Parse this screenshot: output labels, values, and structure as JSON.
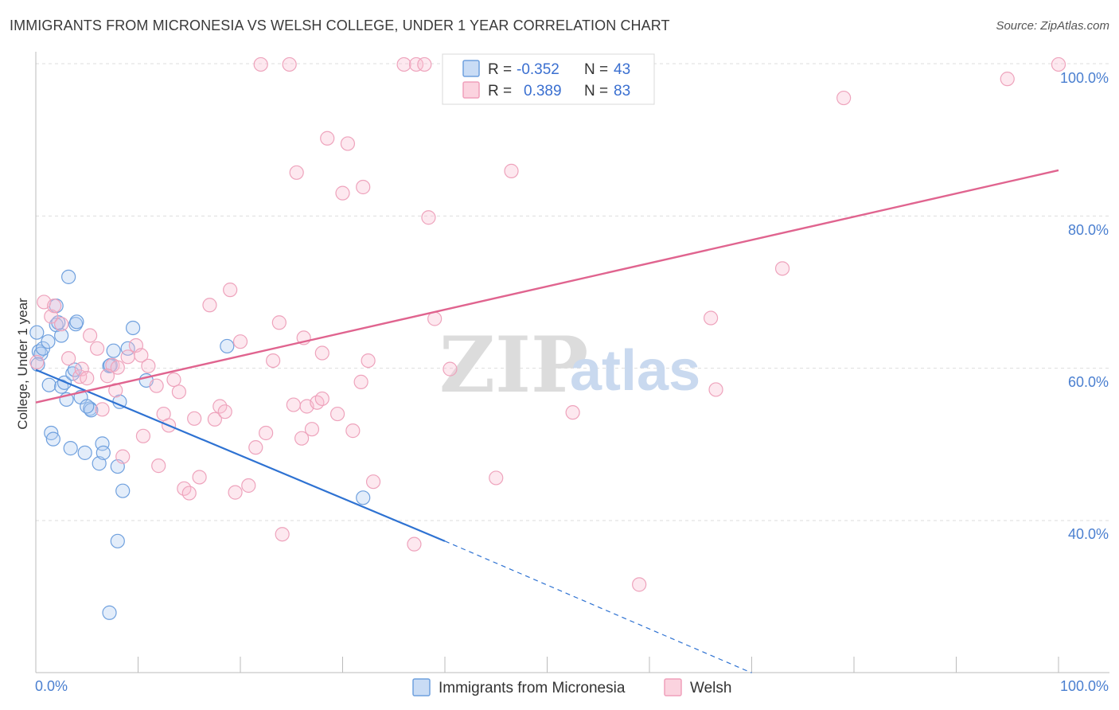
{
  "title": "IMMIGRANTS FROM MICRONESIA VS WELSH COLLEGE, UNDER 1 YEAR CORRELATION CHART",
  "source": "Source: ZipAtlas.com",
  "watermark": {
    "zip": "ZIP",
    "atlas": "atlas"
  },
  "colors": {
    "blue": "#6fa0de",
    "blue_line": "#2e72d2",
    "pink": "#f0a0bb",
    "pink_line": "#e0648f",
    "grid": "#dddddd"
  },
  "legend": {
    "r_label": "R =",
    "n_label": "N =",
    "rows": [
      {
        "r": "-0.352",
        "n": "43",
        "color": "#6fa0de"
      },
      {
        "r": "0.389",
        "n": "83",
        "color": "#f0a0bb"
      }
    ]
  },
  "chart_data": {
    "type": "scatter",
    "title": "IMMIGRANTS FROM MICRONESIA VS WELSH COLLEGE, UNDER 1 YEAR CORRELATION CHART",
    "xlabel": "",
    "ylabel": "College, Under 1 year",
    "xlim": [
      0,
      100
    ],
    "ylim": [
      20,
      102
    ],
    "x_tick_labels": [
      "0.0%",
      "100.0%"
    ],
    "y_ticks": [
      40,
      60,
      80,
      100
    ],
    "y_tick_labels": [
      "40.0%",
      "60.0%",
      "80.0%",
      "100.0%"
    ],
    "grid": true,
    "legend_position": "bottom",
    "series": [
      {
        "name": "Immigrants from Micronesia",
        "color": "#6fa0de",
        "points": [
          [
            0.1,
            64.7
          ],
          [
            0.3,
            62.2
          ],
          [
            0.5,
            61.9
          ],
          [
            0.7,
            62.6
          ],
          [
            1.2,
            63.5
          ],
          [
            1.3,
            57.8
          ],
          [
            1.5,
            51.5
          ],
          [
            1.7,
            50.7
          ],
          [
            2.0,
            68.2
          ],
          [
            2.0,
            65.7
          ],
          [
            2.2,
            66.0
          ],
          [
            2.5,
            64.3
          ],
          [
            2.5,
            57.6
          ],
          [
            2.8,
            58.1
          ],
          [
            3.0,
            55.9
          ],
          [
            3.2,
            72.0
          ],
          [
            3.4,
            49.5
          ],
          [
            3.6,
            59.3
          ],
          [
            3.8,
            59.8
          ],
          [
            3.9,
            65.8
          ],
          [
            4.0,
            66.1
          ],
          [
            4.4,
            56.2
          ],
          [
            4.8,
            48.9
          ],
          [
            5.3,
            54.7
          ],
          [
            5.4,
            54.5
          ],
          [
            6.2,
            47.5
          ],
          [
            6.5,
            50.1
          ],
          [
            6.6,
            48.9
          ],
          [
            7.2,
            60.3
          ],
          [
            7.2,
            27.9
          ],
          [
            7.3,
            60.4
          ],
          [
            7.6,
            62.3
          ],
          [
            8.0,
            47.1
          ],
          [
            8.2,
            55.6
          ],
          [
            8.5,
            43.9
          ],
          [
            8.0,
            37.3
          ],
          [
            9.0,
            62.6
          ],
          [
            9.5,
            65.3
          ],
          [
            10.8,
            58.4
          ],
          [
            18.7,
            62.9
          ],
          [
            32.0,
            43.0
          ],
          [
            0.2,
            60.5
          ],
          [
            5.0,
            55.0
          ]
        ]
      },
      {
        "name": "Welsh",
        "color": "#f0a0bb",
        "points": [
          [
            0.1,
            60.8
          ],
          [
            0.8,
            68.7
          ],
          [
            1.5,
            66.8
          ],
          [
            1.8,
            68.2
          ],
          [
            2.5,
            65.8
          ],
          [
            3.2,
            61.3
          ],
          [
            4.3,
            58.9
          ],
          [
            4.5,
            59.9
          ],
          [
            5.0,
            58.7
          ],
          [
            5.3,
            64.3
          ],
          [
            6.0,
            62.6
          ],
          [
            6.5,
            54.6
          ],
          [
            7.5,
            60.4
          ],
          [
            7.8,
            57.1
          ],
          [
            8.0,
            60.1
          ],
          [
            8.5,
            48.4
          ],
          [
            9.0,
            61.5
          ],
          [
            9.8,
            63.0
          ],
          [
            10.3,
            61.7
          ],
          [
            10.5,
            51.1
          ],
          [
            11.0,
            60.3
          ],
          [
            11.8,
            57.7
          ],
          [
            12.0,
            47.2
          ],
          [
            12.5,
            54.0
          ],
          [
            13.0,
            52.5
          ],
          [
            13.5,
            58.5
          ],
          [
            14.0,
            56.9
          ],
          [
            14.5,
            44.2
          ],
          [
            15.0,
            43.6
          ],
          [
            15.5,
            53.4
          ],
          [
            16.0,
            45.7
          ],
          [
            17.0,
            68.3
          ],
          [
            17.5,
            53.3
          ],
          [
            18.0,
            55.0
          ],
          [
            18.5,
            54.3
          ],
          [
            19.0,
            70.3
          ],
          [
            19.5,
            43.7
          ],
          [
            20.0,
            63.5
          ],
          [
            20.8,
            44.6
          ],
          [
            21.5,
            49.6
          ],
          [
            22.0,
            99.9
          ],
          [
            22.5,
            51.5
          ],
          [
            23.2,
            61.0
          ],
          [
            23.8,
            66.0
          ],
          [
            24.1,
            38.2
          ],
          [
            24.8,
            99.9
          ],
          [
            25.2,
            55.2
          ],
          [
            25.5,
            85.7
          ],
          [
            26.0,
            50.8
          ],
          [
            26.2,
            64.0
          ],
          [
            26.5,
            55.0
          ],
          [
            27.0,
            52.0
          ],
          [
            27.5,
            55.5
          ],
          [
            28.0,
            62.0
          ],
          [
            28.5,
            90.2
          ],
          [
            29.5,
            54.0
          ],
          [
            30.0,
            83.0
          ],
          [
            30.5,
            89.5
          ],
          [
            31.0,
            51.8
          ],
          [
            31.8,
            58.2
          ],
          [
            32.0,
            83.8
          ],
          [
            32.5,
            61.0
          ],
          [
            33.0,
            45.1
          ],
          [
            36.0,
            99.9
          ],
          [
            37.2,
            99.9
          ],
          [
            38.0,
            99.9
          ],
          [
            38.4,
            79.8
          ],
          [
            39.0,
            66.5
          ],
          [
            40.5,
            59.9
          ],
          [
            41.0,
            99.9
          ],
          [
            45.0,
            45.6
          ],
          [
            46.5,
            85.9
          ],
          [
            52.5,
            54.2
          ],
          [
            59.0,
            31.6
          ],
          [
            66.0,
            66.6
          ],
          [
            66.5,
            57.2
          ],
          [
            73.0,
            73.1
          ],
          [
            79.0,
            95.5
          ],
          [
            95.0,
            98.0
          ],
          [
            100.0,
            99.9
          ],
          [
            37.0,
            36.9
          ],
          [
            28.0,
            56.0
          ],
          [
            7.0,
            59.0
          ]
        ]
      }
    ],
    "trendlines": [
      {
        "series": "Immigrants from Micronesia",
        "solid": [
          [
            0,
            59.8
          ],
          [
            40,
            37.3
          ]
        ],
        "dashed": [
          [
            40,
            37.3
          ],
          [
            70,
            20
          ]
        ]
      },
      {
        "series": "Welsh",
        "solid": [
          [
            0,
            55.5
          ],
          [
            100,
            86.0
          ]
        ]
      }
    ]
  }
}
